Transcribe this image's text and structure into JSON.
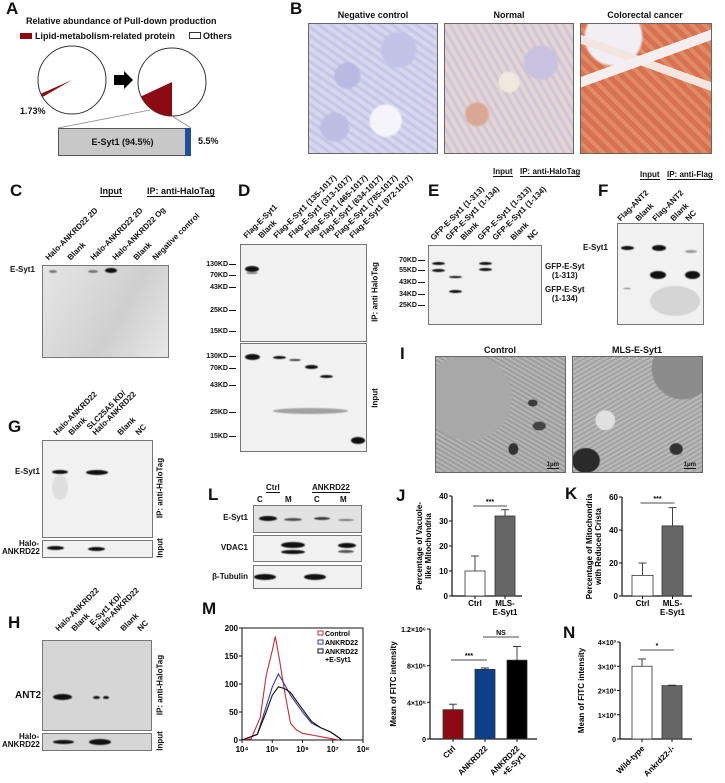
{
  "panels": {
    "A": {
      "label": "A"
    },
    "B": {
      "label": "B",
      "images": [
        "Negative control",
        "Normal",
        "Colorectal cancer"
      ]
    },
    "C": {
      "label": "C",
      "header_input": "Input",
      "header_ip": "IP:  anti-HaloTag",
      "lanes": [
        "Halo-ANKRD22 2D",
        "Blank",
        "Halo-ANKRD22 2D",
        "Halo-ANKRD22 Og",
        "Blank",
        "Negative control"
      ],
      "row_label": "E-Syt1"
    },
    "D": {
      "label": "D",
      "lanes": [
        "Flag-E-Syt1",
        "Blank",
        "Flag-E-Syt1 (135-1017)",
        "Flag-E-Syt1 (313-1017)",
        "Flag-E-Syt1 (465-1017)",
        "Flag-E-Syt1 (634-1017)",
        "Flag-E-Syt1 (785-1017)",
        "Flag-E-Syt1 (972-1017)"
      ],
      "markers": [
        "130KD",
        "70KD",
        "43KD",
        "25KD",
        "15KD"
      ],
      "side_top": "IP: anti HaloTag",
      "side_bottom": "Input"
    },
    "E": {
      "label": "E",
      "header_input": "Input",
      "header_ip": "IP: anti-HaloTag",
      "lanes": [
        "GFP-E-Syt1 (1-313)",
        "GFP-E-Syt1 (1-134)",
        "Blank",
        "GFP-E-Syt1 (1-313)",
        "GFP-E-Syt1 (1-134)",
        "Blank",
        "NC"
      ],
      "markers": [
        "70KD",
        "55KD",
        "43KD",
        "34KD",
        "25KD"
      ],
      "band_label_1": "GFP-E-Syt\n(1-313)",
      "band_label_2": "GFP-E-Syt\n(1-134)"
    },
    "F": {
      "label": "F",
      "header_input": "Input",
      "header_ip": "IP: anti-Flag",
      "lanes": [
        "Flag-ANT2",
        "Blank",
        "Flag-ANT2",
        "Blank",
        "NC"
      ],
      "row_label": "E-Syt1"
    },
    "G": {
      "label": "G",
      "lanes": [
        "Halo-ANKRD22",
        "Blank",
        "SLC25A5 KD/\nHalo-ANKRD22",
        "Blank",
        "NC"
      ],
      "row_label": "E-Syt1",
      "input_label": "Halo-\nANKRD22",
      "side_top": "IP: anti-HaloTag",
      "side_bottom": "Input"
    },
    "H": {
      "label": "H",
      "lanes": [
        "Halo-ANKRD22",
        "Blank",
        "E-Syt1 KD/\nHalo-ANKRD22",
        "Blank",
        "NC"
      ],
      "row_label": "ANT2",
      "input_label": "Halo-\nANKRD22",
      "side_top": "IP: anti-HaloTag",
      "side_bottom": "Input"
    },
    "I": {
      "label": "I",
      "images": [
        "Control",
        "MLS-E-Syt1"
      ],
      "scale_bar": "1μm"
    },
    "J": {
      "label": "J"
    },
    "K": {
      "label": "K"
    },
    "L": {
      "label": "L",
      "groups": [
        "Ctrl",
        "ANKRD22"
      ],
      "fractions": [
        "C",
        "M",
        "C",
        "M"
      ],
      "rows": [
        "E-Syt1",
        "VDAC1",
        "β-Tubulin"
      ]
    },
    "M": {
      "label": "M"
    },
    "N": {
      "label": "N"
    }
  },
  "chart_data": [
    {
      "id": "A-pies",
      "type": "pie",
      "title": "Relative abundance of Pull-down production",
      "legend": [
        {
          "name": "Lipid-metabolism-related protein",
          "color": "#8b0a14"
        },
        {
          "name": "Others",
          "color": "#ffffff"
        }
      ],
      "pies": [
        {
          "slices": [
            {
              "name": "Lipid-metabolism-related protein",
              "value": 1.73,
              "label": "1.73%"
            },
            {
              "name": "Others",
              "value": 98.27
            }
          ]
        },
        {
          "slices": [
            {
              "name": "Lipid-metabolism-related protein",
              "value": 18.08,
              "label": "18.08%"
            },
            {
              "name": "Others",
              "value": 81.92
            }
          ]
        }
      ]
    },
    {
      "id": "A-stack",
      "type": "bar",
      "stacked": true,
      "segments": [
        {
          "label": "E-Syt1 (94.5%)",
          "value": 94.5,
          "color": "#c8c8c8"
        },
        {
          "label": "5.5%",
          "value": 5.5,
          "color": "#1f4e9a"
        }
      ]
    },
    {
      "id": "J",
      "type": "bar",
      "categories": [
        "Ctrl",
        "MLS-\nE-Syt1"
      ],
      "values": [
        10,
        32
      ],
      "errors": [
        6,
        2.5
      ],
      "colors": [
        "#ffffff",
        "#666666"
      ],
      "ylabel": "Percentage of Vacuole-\nlike Mitochondria",
      "ylim": [
        0,
        40
      ],
      "yticks": [
        "0",
        "10",
        "20",
        "30",
        "40"
      ],
      "yticks_values": [
        0,
        10,
        20,
        30,
        40
      ],
      "significance": [
        {
          "pair": [
            0,
            1
          ],
          "label": "***"
        }
      ]
    },
    {
      "id": "K",
      "type": "bar",
      "categories": [
        "Ctrl",
        "MLS-\nE-Syt1"
      ],
      "values": [
        12.5,
        42.5
      ],
      "errors": [
        7.5,
        11
      ],
      "colors": [
        "#ffffff",
        "#666666"
      ],
      "ylabel": "Percentage of Mitochondria\nwith Reduced Crista",
      "ylim": [
        0,
        60
      ],
      "yticks": [
        "0",
        "20",
        "40",
        "60"
      ],
      "yticks_values": [
        0,
        20,
        40,
        60
      ],
      "significance": [
        {
          "pair": [
            0,
            1
          ],
          "label": "***"
        }
      ]
    },
    {
      "id": "M-hist",
      "type": "line",
      "x_scale": "log",
      "xlim": [
        10000,
        100000000
      ],
      "ylim": [
        0,
        200
      ],
      "xticks": [
        "10⁴",
        "10⁵",
        "10⁶",
        "10⁷",
        "10⁸"
      ],
      "xticks_values": [
        10000,
        100000,
        1000000,
        10000000,
        100000000
      ],
      "yticks": [
        "0",
        "50",
        "100",
        "150",
        "200"
      ],
      "yticks_values": [
        0,
        50,
        100,
        150,
        200
      ],
      "legend_position": "top-right",
      "series": [
        {
          "name": "Control",
          "color": "#c0303a",
          "x": [
            10000,
            20000,
            40000,
            63000,
            100000,
            126000,
            178000,
            250000,
            400000,
            630000,
            1000000,
            2500000,
            6300000,
            10000000,
            16000000
          ],
          "y": [
            0,
            2,
            40,
            115,
            160,
            185,
            140,
            90,
            30,
            18,
            12,
            8,
            4,
            2,
            0
          ]
        },
        {
          "name": "ANKRD22",
          "color": "#3a3aa0",
          "x": [
            10000,
            32000,
            63000,
            100000,
            160000,
            250000,
            400000,
            630000,
            1000000,
            2000000,
            4000000,
            8000000,
            12600000,
            20000000
          ],
          "y": [
            0,
            10,
            60,
            95,
            118,
            100,
            80,
            65,
            50,
            30,
            22,
            15,
            8,
            0
          ]
        },
        {
          "name": "ANKRD22\n+E-Syt1",
          "color": "#111111",
          "x": [
            10000,
            32000,
            63000,
            100000,
            160000,
            250000,
            400000,
            630000,
            1000000,
            2000000,
            4000000,
            8000000,
            12600000,
            20000000
          ],
          "y": [
            0,
            10,
            50,
            80,
            95,
            92,
            85,
            70,
            55,
            33,
            22,
            15,
            8,
            0
          ]
        }
      ]
    },
    {
      "id": "M-bar",
      "type": "bar",
      "categories": [
        "Ctrl",
        "ANKRD22",
        "ANKRD22\n+E-Syt1"
      ],
      "values": [
        320000,
        760000,
        860000
      ],
      "errors": [
        60000,
        15000,
        150000
      ],
      "colors": [
        "#8b0a14",
        "#0d3f8a",
        "#000000"
      ],
      "ylabel": "Mean of FITC intensity",
      "ylim": [
        0,
        1200000
      ],
      "yticks": [
        "0",
        "4×10⁵",
        "8×10⁵",
        "1.2×10⁶"
      ],
      "yticks_values": [
        0,
        400000,
        800000,
        1200000
      ],
      "significance": [
        {
          "pair": [
            0,
            1
          ],
          "label": "***"
        },
        {
          "pair": [
            1,
            2
          ],
          "label": "NS"
        }
      ]
    },
    {
      "id": "N",
      "type": "bar",
      "categories": [
        "Wild-type",
        "Ankrd22-/-"
      ],
      "values": [
        3000,
        2200
      ],
      "errors": [
        300,
        20
      ],
      "colors": [
        "#ffffff",
        "#666666"
      ],
      "ylabel": "Mean of FITC intensity",
      "ylim": [
        0,
        4000
      ],
      "yticks": [
        "0",
        "1×10³",
        "2×10³",
        "3×10³",
        "4×10³"
      ],
      "yticks_values": [
        0,
        1000,
        2000,
        3000,
        4000
      ],
      "significance": [
        {
          "pair": [
            0,
            1
          ],
          "label": "*"
        }
      ]
    }
  ]
}
